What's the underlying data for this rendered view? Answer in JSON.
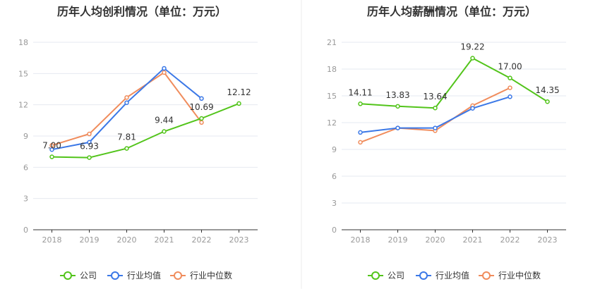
{
  "colors": {
    "company": "#52c41a",
    "industry_avg": "#3b78e7",
    "industry_median": "#f08c5c"
  },
  "legend": {
    "company": "公司",
    "industry_avg": "行业均值",
    "industry_median": "行业中位数"
  },
  "chart_data": [
    {
      "type": "line",
      "title": "历年人均创利情况（单位：万元）",
      "categories": [
        "2018",
        "2019",
        "2020",
        "2021",
        "2022",
        "2023"
      ],
      "ylim": [
        0,
        18
      ],
      "yticks": [
        0,
        3,
        6,
        9,
        12,
        15,
        18
      ],
      "series": [
        {
          "name": "公司",
          "key": "company",
          "values": [
            7.0,
            6.93,
            7.81,
            9.44,
            10.69,
            12.12
          ],
          "labels": [
            "7.00",
            "6.93",
            "7.81",
            "9.44",
            "10.69",
            "12.12"
          ]
        },
        {
          "name": "行业均值",
          "key": "industry_avg",
          "values": [
            7.7,
            8.4,
            12.2,
            15.5,
            12.6,
            null
          ]
        },
        {
          "name": "行业中位数",
          "key": "industry_median",
          "values": [
            8.1,
            9.2,
            12.7,
            15.1,
            10.3,
            null
          ]
        }
      ]
    },
    {
      "type": "line",
      "title": "历年人均薪酬情况（单位：万元）",
      "categories": [
        "2018",
        "2019",
        "2020",
        "2021",
        "2022",
        "2023"
      ],
      "ylim": [
        0,
        21
      ],
      "yticks": [
        0,
        3,
        6,
        9,
        12,
        15,
        18,
        21
      ],
      "series": [
        {
          "name": "公司",
          "key": "company",
          "values": [
            14.11,
            13.83,
            13.64,
            19.22,
            17.0,
            14.35
          ],
          "labels": [
            "14.11",
            "13.83",
            "13.64",
            "19.22",
            "17.00",
            "14.35"
          ]
        },
        {
          "name": "行业均值",
          "key": "industry_avg",
          "values": [
            10.9,
            11.4,
            11.4,
            13.6,
            14.9,
            null
          ]
        },
        {
          "name": "行业中位数",
          "key": "industry_median",
          "values": [
            9.8,
            11.4,
            11.1,
            13.9,
            15.9,
            null
          ]
        }
      ]
    }
  ]
}
